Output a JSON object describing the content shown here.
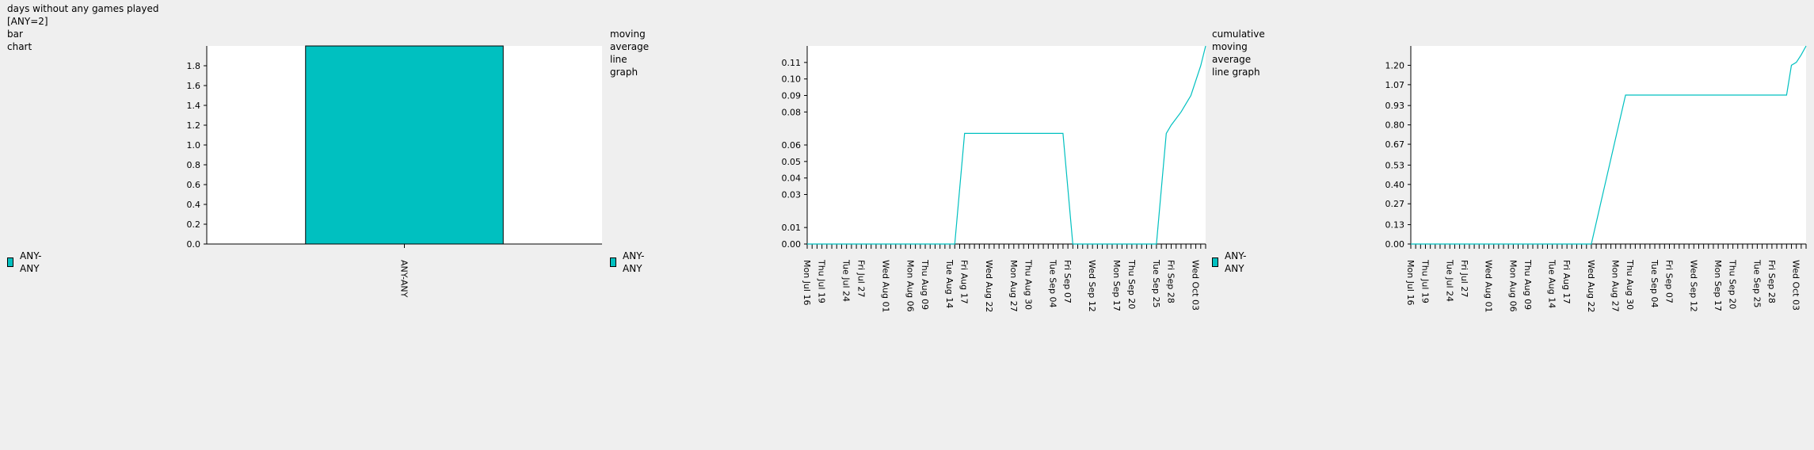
{
  "header": {
    "title": "days without any games played",
    "subtitle": "[ANY=2]"
  },
  "series_color": "#00c0c0",
  "chart_data": [
    {
      "type": "bar",
      "title": "bar chart",
      "legend": "ANY-ANY",
      "categories": [
        "ANY-ANY"
      ],
      "values": [
        2
      ],
      "ylim": [
        0,
        2
      ],
      "yticks": [
        "0.0",
        "0.2",
        "0.4",
        "0.6",
        "0.8",
        "1.0",
        "1.2",
        "1.4",
        "1.6",
        "1.8"
      ],
      "grid": false
    },
    {
      "type": "line",
      "title": "moving average line graph",
      "legend": "ANY-ANY",
      "ylim": [
        0,
        0.12
      ],
      "yticks": [
        "0.00",
        "0.01",
        "0.03",
        "0.04",
        "0.05",
        "0.06",
        "0.08",
        "0.09",
        "0.10",
        "0.11"
      ],
      "xlabels": [
        "Mon Jul 16",
        "Thu Jul 19",
        "Tue Jul 24",
        "Fri Jul 27",
        "Wed Aug 01",
        "Mon Aug 06",
        "Thu Aug 09",
        "Tue Aug 14",
        "Fri Aug 17",
        "Wed Aug 22",
        "Mon Aug 27",
        "Thu Aug 30",
        "Tue Sep 04",
        "Fri Sep 07",
        "Wed Sep 12",
        "Mon Sep 17",
        "Thu Sep 20",
        "Tue Sep 25",
        "Fri Sep 28",
        "Wed Oct 03"
      ],
      "x": [
        "2018-07-16",
        "2018-08-15",
        "2018-08-17",
        "2018-09-06",
        "2018-09-08",
        "2018-09-25",
        "2018-09-27",
        "2018-09-28",
        "2018-09-30",
        "2018-10-02",
        "2018-10-04",
        "2018-10-05"
      ],
      "y": [
        0,
        0,
        0.067,
        0.067,
        0,
        0,
        0.067,
        0.072,
        0.08,
        0.09,
        0.108,
        0.12
      ],
      "grid": false
    },
    {
      "type": "line",
      "title": "cumulative moving average line graph",
      "legend": "ANY-ANY",
      "ylim": [
        0,
        1.33
      ],
      "yticks": [
        "0.00",
        "0.13",
        "0.27",
        "0.40",
        "0.53",
        "0.67",
        "0.80",
        "0.93",
        "1.07",
        "1.20"
      ],
      "xlabels": [
        "Mon Jul 16",
        "Thu Jul 19",
        "Tue Jul 24",
        "Fri Jul 27",
        "Wed Aug 01",
        "Mon Aug 06",
        "Thu Aug 09",
        "Tue Aug 14",
        "Fri Aug 17",
        "Wed Aug 22",
        "Mon Aug 27",
        "Thu Aug 30",
        "Tue Sep 04",
        "Fri Sep 07",
        "Wed Sep 12",
        "Mon Sep 17",
        "Thu Sep 20",
        "Tue Sep 25",
        "Fri Sep 28",
        "Wed Oct 03"
      ],
      "x": [
        "2018-07-16",
        "2018-08-22",
        "2018-08-29",
        "2018-10-01",
        "2018-10-02",
        "2018-10-03",
        "2018-10-04",
        "2018-10-05"
      ],
      "y": [
        0,
        0,
        1.0,
        1.0,
        1.2,
        1.22,
        1.27,
        1.33
      ],
      "grid": false
    }
  ]
}
